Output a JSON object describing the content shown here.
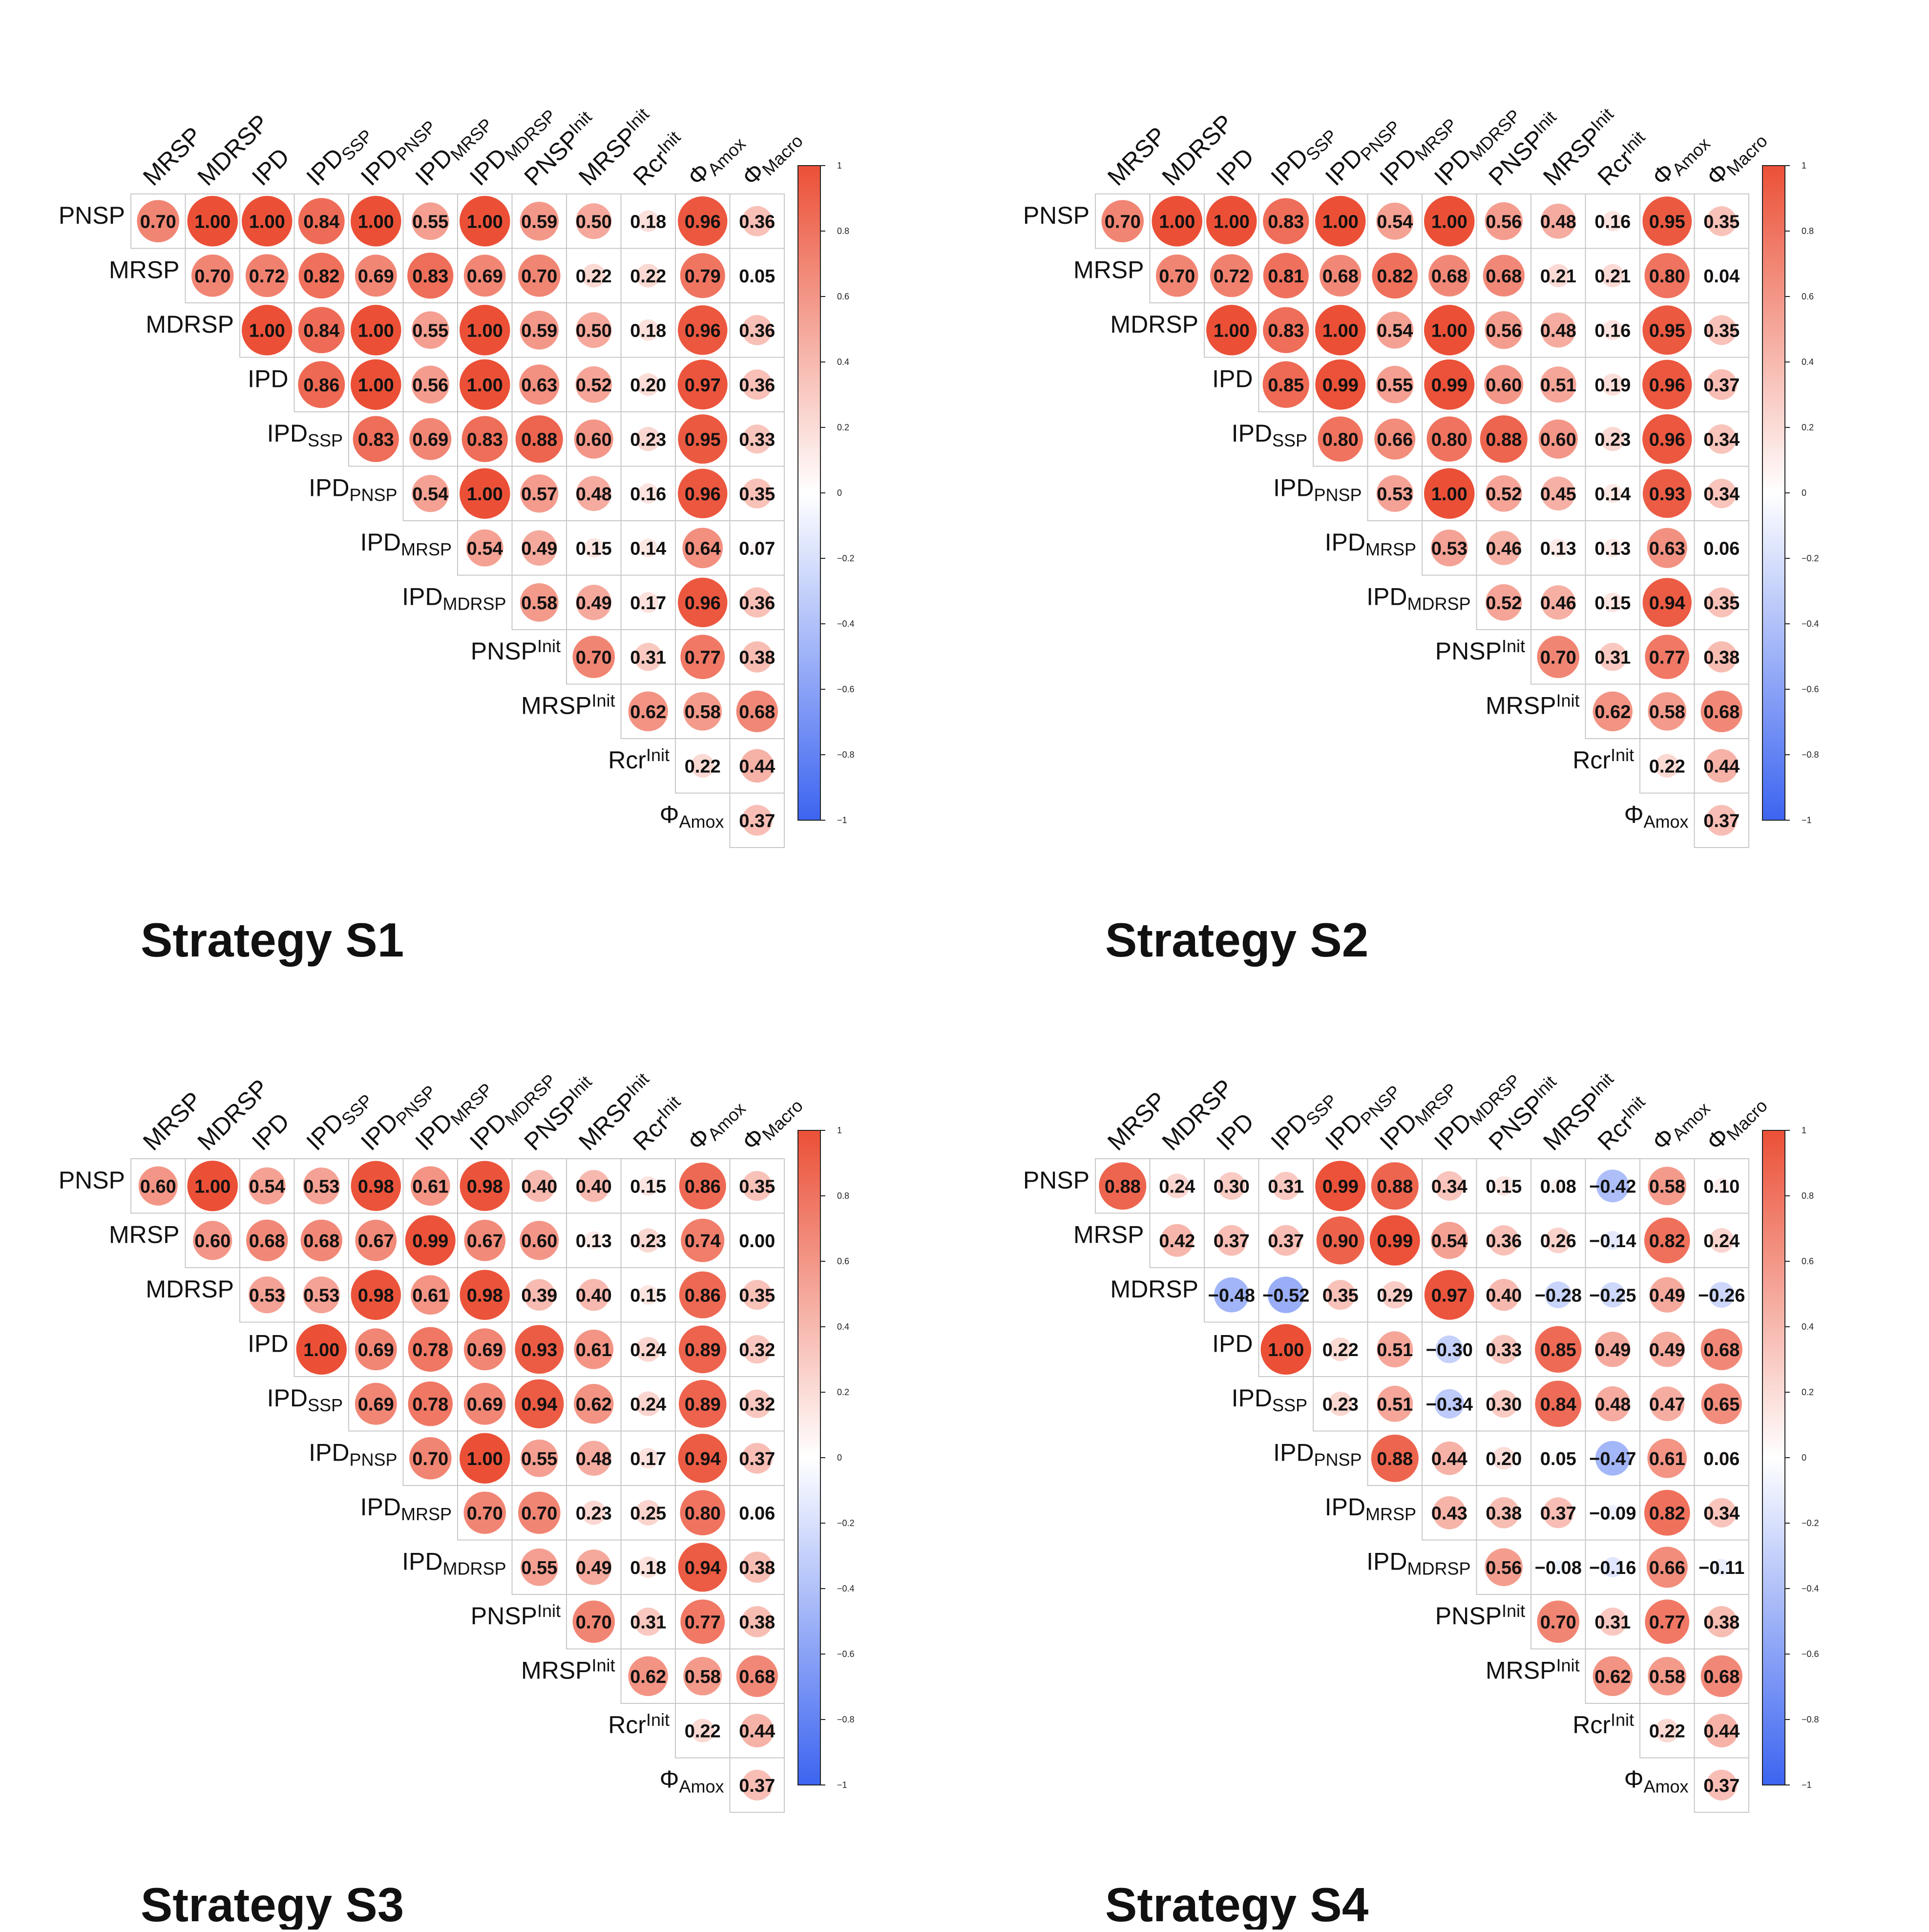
{
  "chart_data": [
    {
      "type": "heatmap",
      "title": "Strategy S1",
      "rows": [
        "PNSP",
        "MRSP",
        "MDRSP",
        "IPD",
        "IPD_SSP",
        "IPD_PNSP",
        "IPD_MRSP",
        "IPD_MDRSP",
        "PNSP^Init",
        "MRSP^Init",
        "Rcr^Init",
        "Φ_Amox"
      ],
      "columns": [
        "MRSP",
        "MDRSP",
        "IPD",
        "IPD_SSP",
        "IPD_PNSP",
        "IPD_MRSP",
        "IPD_MDRSP",
        "PNSP^Init",
        "MRSP^Init",
        "Rcr^Init",
        "Φ_Amox",
        "Φ_Macro"
      ],
      "values": [
        [
          0.7,
          1.0,
          1.0,
          0.84,
          1.0,
          0.55,
          1.0,
          0.59,
          0.5,
          0.18,
          0.96,
          0.36
        ],
        [
          0.7,
          0.72,
          0.82,
          0.69,
          0.83,
          0.69,
          0.7,
          0.22,
          0.22,
          0.79,
          0.05
        ],
        [
          1.0,
          0.84,
          1.0,
          0.55,
          1.0,
          0.59,
          0.5,
          0.18,
          0.96,
          0.36
        ],
        [
          0.86,
          1.0,
          0.56,
          1.0,
          0.63,
          0.52,
          0.2,
          0.97,
          0.36
        ],
        [
          0.83,
          0.69,
          0.83,
          0.88,
          0.6,
          0.23,
          0.95,
          0.33
        ],
        [
          0.54,
          1.0,
          0.57,
          0.48,
          0.16,
          0.96,
          0.35
        ],
        [
          0.54,
          0.49,
          0.15,
          0.14,
          0.64,
          0.07
        ],
        [
          0.58,
          0.49,
          0.17,
          0.96,
          0.36
        ],
        [
          0.7,
          0.31,
          0.77,
          0.38
        ],
        [
          0.62,
          0.58,
          0.68
        ],
        [
          0.22,
          0.44
        ],
        [
          0.37
        ]
      ],
      "colorbar": {
        "range": [
          -1,
          1
        ],
        "ticks": [
          "1",
          "0.8",
          "0.6",
          "0.4",
          "0.2",
          "0",
          "−0.2",
          "−0.4",
          "−0.6",
          "−0.8",
          "−1"
        ]
      }
    },
    {
      "type": "heatmap",
      "title": "Strategy S2",
      "rows": [
        "PNSP",
        "MRSP",
        "MDRSP",
        "IPD",
        "IPD_SSP",
        "IPD_PNSP",
        "IPD_MRSP",
        "IPD_MDRSP",
        "PNSP^Init",
        "MRSP^Init",
        "Rcr^Init",
        "Φ_Amox"
      ],
      "columns": [
        "MRSP",
        "MDRSP",
        "IPD",
        "IPD_SSP",
        "IPD_PNSP",
        "IPD_MRSP",
        "IPD_MDRSP",
        "PNSP^Init",
        "MRSP^Init",
        "Rcr^Init",
        "Φ_Amox",
        "Φ_Macro"
      ],
      "values": [
        [
          0.7,
          1.0,
          1.0,
          0.83,
          1.0,
          0.54,
          1.0,
          0.56,
          0.48,
          0.16,
          0.95,
          0.35
        ],
        [
          0.7,
          0.72,
          0.81,
          0.68,
          0.82,
          0.68,
          0.68,
          0.21,
          0.21,
          0.8,
          0.04
        ],
        [
          1.0,
          0.83,
          1.0,
          0.54,
          1.0,
          0.56,
          0.48,
          0.16,
          0.95,
          0.35
        ],
        [
          0.85,
          0.99,
          0.55,
          0.99,
          0.6,
          0.51,
          0.19,
          0.96,
          0.37
        ],
        [
          0.8,
          0.66,
          0.8,
          0.88,
          0.6,
          0.23,
          0.96,
          0.34
        ],
        [
          0.53,
          1.0,
          0.52,
          0.45,
          0.14,
          0.93,
          0.34
        ],
        [
          0.53,
          0.46,
          0.13,
          0.13,
          0.63,
          0.06
        ],
        [
          0.52,
          0.46,
          0.15,
          0.94,
          0.35
        ],
        [
          0.7,
          0.31,
          0.77,
          0.38
        ],
        [
          0.62,
          0.58,
          0.68
        ],
        [
          0.22,
          0.44
        ],
        [
          0.37
        ]
      ],
      "colorbar": {
        "range": [
          -1,
          1
        ],
        "ticks": [
          "1",
          "0.8",
          "0.6",
          "0.4",
          "0.2",
          "0",
          "−0.2",
          "−0.4",
          "−0.6",
          "−0.8",
          "−1"
        ]
      }
    },
    {
      "type": "heatmap",
      "title": "Strategy S3",
      "rows": [
        "PNSP",
        "MRSP",
        "MDRSP",
        "IPD",
        "IPD_SSP",
        "IPD_PNSP",
        "IPD_MRSP",
        "IPD_MDRSP",
        "PNSP^Init",
        "MRSP^Init",
        "Rcr^Init",
        "Φ_Amox"
      ],
      "columns": [
        "MRSP",
        "MDRSP",
        "IPD",
        "IPD_SSP",
        "IPD_PNSP",
        "IPD_MRSP",
        "IPD_MDRSP",
        "PNSP^Init",
        "MRSP^Init",
        "Rcr^Init",
        "Φ_Amox",
        "Φ_Macro"
      ],
      "values": [
        [
          0.6,
          1.0,
          0.54,
          0.53,
          0.98,
          0.61,
          0.98,
          0.4,
          0.4,
          0.15,
          0.86,
          0.35
        ],
        [
          0.6,
          0.68,
          0.68,
          0.67,
          0.99,
          0.67,
          0.6,
          0.13,
          0.23,
          0.74,
          0.0
        ],
        [
          0.53,
          0.53,
          0.98,
          0.61,
          0.98,
          0.39,
          0.4,
          0.15,
          0.86,
          0.35
        ],
        [
          1.0,
          0.69,
          0.78,
          0.69,
          0.93,
          0.61,
          0.24,
          0.89,
          0.32
        ],
        [
          0.69,
          0.78,
          0.69,
          0.94,
          0.62,
          0.24,
          0.89,
          0.32
        ],
        [
          0.7,
          1.0,
          0.55,
          0.48,
          0.17,
          0.94,
          0.37
        ],
        [
          0.7,
          0.7,
          0.23,
          0.25,
          0.8,
          0.06
        ],
        [
          0.55,
          0.49,
          0.18,
          0.94,
          0.38
        ],
        [
          0.7,
          0.31,
          0.77,
          0.38
        ],
        [
          0.62,
          0.58,
          0.68
        ],
        [
          0.22,
          0.44
        ],
        [
          0.37
        ]
      ],
      "colorbar": {
        "range": [
          -1,
          1
        ],
        "ticks": [
          "1",
          "0.8",
          "0.6",
          "0.4",
          "0.2",
          "0",
          "−0.2",
          "−0.4",
          "−0.6",
          "−0.8",
          "−1"
        ]
      }
    },
    {
      "type": "heatmap",
      "title": "Strategy S4",
      "rows": [
        "PNSP",
        "MRSP",
        "MDRSP",
        "IPD",
        "IPD_SSP",
        "IPD_PNSP",
        "IPD_MRSP",
        "IPD_MDRSP",
        "PNSP^Init",
        "MRSP^Init",
        "Rcr^Init",
        "Φ_Amox"
      ],
      "columns": [
        "MRSP",
        "MDRSP",
        "IPD",
        "IPD_SSP",
        "IPD_PNSP",
        "IPD_MRSP",
        "IPD_MDRSP",
        "PNSP^Init",
        "MRSP^Init",
        "Rcr^Init",
        "Φ_Amox",
        "Φ_Macro"
      ],
      "values": [
        [
          0.88,
          0.24,
          0.3,
          0.31,
          0.99,
          0.88,
          0.34,
          0.15,
          0.08,
          -0.42,
          0.58,
          0.1
        ],
        [
          0.42,
          0.37,
          0.37,
          0.9,
          0.99,
          0.54,
          0.36,
          0.26,
          -0.14,
          0.82,
          0.24
        ],
        [
          -0.48,
          -0.52,
          0.35,
          0.29,
          0.97,
          0.4,
          -0.28,
          -0.25,
          0.49,
          -0.26
        ],
        [
          1.0,
          0.22,
          0.51,
          -0.3,
          0.33,
          0.85,
          0.49,
          0.49,
          0.68
        ],
        [
          0.23,
          0.51,
          -0.34,
          0.3,
          0.84,
          0.48,
          0.47,
          0.65
        ],
        [
          0.88,
          0.44,
          0.2,
          0.05,
          -0.47,
          0.61,
          0.06
        ],
        [
          0.43,
          0.38,
          0.37,
          -0.09,
          0.82,
          0.34
        ],
        [
          0.56,
          -0.08,
          -0.16,
          0.66,
          -0.11
        ],
        [
          0.7,
          0.31,
          0.77,
          0.38
        ],
        [
          0.62,
          0.58,
          0.68
        ],
        [
          0.22,
          0.44
        ],
        [
          0.37
        ]
      ],
      "colorbar": {
        "range": [
          -1,
          1
        ],
        "ticks": [
          "1",
          "0.8",
          "0.6",
          "0.4",
          "0.2",
          "0",
          "−0.2",
          "−0.4",
          "−0.6",
          "−0.8",
          "−1"
        ]
      }
    }
  ]
}
